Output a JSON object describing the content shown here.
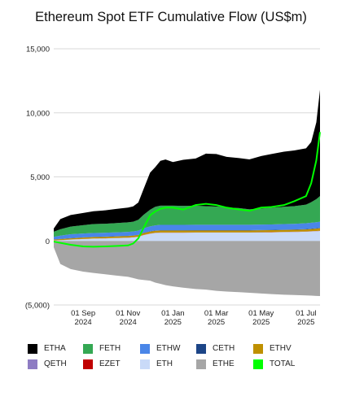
{
  "chart_data": {
    "type": "area",
    "title": "Ethereum Spot ETF Cumulative Flow (US$m)",
    "ylim": [
      -5000,
      15000
    ],
    "y_ticks": [
      15000,
      10000,
      5000,
      0,
      -5000
    ],
    "y_tick_labels": [
      "15,000",
      "10,000",
      "5,000",
      "0",
      "(5,000)"
    ],
    "x_ticks": [
      {
        "date": "2024-09-01",
        "line1": "01 Sep",
        "line2": "2024"
      },
      {
        "date": "2024-11-01",
        "line1": "01 Nov",
        "line2": "2024"
      },
      {
        "date": "2025-01-01",
        "line1": "01 Jan",
        "line2": "2025"
      },
      {
        "date": "2025-03-01",
        "line1": "01 Mar",
        "line2": "2025"
      },
      {
        "date": "2025-05-01",
        "line1": "01 May",
        "line2": "2025"
      },
      {
        "date": "2025-07-01",
        "line1": "01 Jul",
        "line2": "2025"
      }
    ],
    "x": [
      "2024-07-23",
      "2024-08-01",
      "2024-08-15",
      "2024-09-01",
      "2024-09-15",
      "2024-10-01",
      "2024-10-15",
      "2024-11-01",
      "2024-11-08",
      "2024-11-15",
      "2024-11-22",
      "2024-12-01",
      "2024-12-08",
      "2024-12-15",
      "2024-12-22",
      "2025-01-01",
      "2025-01-15",
      "2025-02-01",
      "2025-02-15",
      "2025-03-01",
      "2025-03-15",
      "2025-04-01",
      "2025-04-15",
      "2025-05-01",
      "2025-05-15",
      "2025-06-01",
      "2025-06-15",
      "2025-07-01",
      "2025-07-08",
      "2025-07-15",
      "2025-07-20"
    ],
    "series": [
      {
        "name": "ETHE",
        "color": "#a6a6a6",
        "values": [
          -500,
          -1800,
          -2200,
          -2400,
          -2500,
          -2600,
          -2700,
          -2800,
          -2900,
          -3000,
          -3050,
          -3100,
          -3250,
          -3350,
          -3450,
          -3550,
          -3650,
          -3750,
          -3800,
          -3900,
          -3950,
          -4000,
          -4050,
          -4100,
          -4150,
          -4200,
          -4220,
          -4250,
          -4270,
          -4290,
          -4300
        ]
      },
      {
        "name": "ETH",
        "color": "#c9daf8",
        "values": [
          30,
          50,
          100,
          150,
          180,
          200,
          220,
          250,
          280,
          320,
          450,
          560,
          620,
          640,
          640,
          640,
          640,
          650,
          650,
          650,
          650,
          650,
          650,
          660,
          670,
          690,
          700,
          720,
          740,
          760,
          780
        ]
      },
      {
        "name": "EZET",
        "color": "#c00000",
        "values": [
          5,
          5,
          5,
          5,
          5,
          5,
          5,
          5,
          5,
          5,
          10,
          10,
          10,
          10,
          10,
          10,
          10,
          10,
          10,
          10,
          10,
          10,
          10,
          10,
          10,
          10,
          10,
          10,
          10,
          10,
          10
        ]
      },
      {
        "name": "QETH",
        "color": "#8e7cc3",
        "values": [
          5,
          5,
          5,
          5,
          5,
          5,
          5,
          5,
          5,
          5,
          10,
          10,
          10,
          10,
          10,
          10,
          10,
          10,
          10,
          10,
          10,
          10,
          10,
          10,
          10,
          10,
          10,
          10,
          10,
          10,
          10
        ]
      },
      {
        "name": "ETHV",
        "color": "#bf9000",
        "values": [
          60,
          80,
          90,
          100,
          110,
          110,
          120,
          120,
          120,
          130,
          140,
          150,
          150,
          150,
          150,
          150,
          150,
          150,
          150,
          150,
          150,
          150,
          150,
          150,
          150,
          150,
          150,
          160,
          170,
          180,
          190
        ]
      },
      {
        "name": "CETH",
        "color": "#1c4587",
        "values": [
          20,
          20,
          20,
          20,
          20,
          20,
          20,
          20,
          20,
          20,
          25,
          25,
          25,
          25,
          25,
          25,
          25,
          25,
          25,
          25,
          25,
          25,
          25,
          25,
          25,
          25,
          25,
          30,
          30,
          30,
          30
        ]
      },
      {
        "name": "ETHW",
        "color": "#4a86e8",
        "values": [
          200,
          250,
          300,
          300,
          300,
          300,
          300,
          310,
          310,
          320,
          350,
          380,
          400,
          420,
          420,
          420,
          420,
          420,
          420,
          420,
          420,
          420,
          420,
          420,
          420,
          430,
          440,
          450,
          460,
          470,
          480
        ]
      },
      {
        "name": "FETH",
        "color": "#34a853",
        "values": [
          400,
          500,
          600,
          650,
          700,
          700,
          720,
          740,
          760,
          850,
          1050,
          1300,
          1450,
          1500,
          1500,
          1500,
          1480,
          1470,
          1450,
          1420,
          1350,
          1300,
          1200,
          1250,
          1300,
          1350,
          1380,
          1450,
          1600,
          1800,
          2000
        ]
      },
      {
        "name": "ETHA",
        "color": "#000000",
        "values": [
          250,
          800,
          900,
          950,
          1000,
          1050,
          1100,
          1150,
          1200,
          1350,
          2000,
          2900,
          3100,
          3500,
          3600,
          3400,
          3600,
          3700,
          4100,
          4100,
          3950,
          3900,
          3900,
          4100,
          4200,
          4300,
          4350,
          4400,
          4700,
          6000,
          8300
        ]
      }
    ],
    "total": {
      "name": "TOTAL",
      "color": "#00ff00",
      "values": [
        -50,
        -150,
        -300,
        -430,
        -450,
        -430,
        -400,
        -350,
        -200,
        200,
        1000,
        2000,
        2300,
        2500,
        2600,
        2600,
        2450,
        2800,
        2900,
        2800,
        2600,
        2450,
        2350,
        2600,
        2650,
        2800,
        3100,
        3500,
        4500,
        6300,
        8500
      ]
    },
    "legend": [
      [
        {
          "name": "ETHA",
          "color": "#000000"
        },
        {
          "name": "FETH",
          "color": "#34a853"
        },
        {
          "name": "ETHW",
          "color": "#4a86e8"
        },
        {
          "name": "CETH",
          "color": "#1c4587"
        },
        {
          "name": "ETHV",
          "color": "#bf9000"
        }
      ],
      [
        {
          "name": "QETH",
          "color": "#8e7cc3"
        },
        {
          "name": "EZET",
          "color": "#c00000"
        },
        {
          "name": "ETH",
          "color": "#c9daf8"
        },
        {
          "name": "ETHE",
          "color": "#a6a6a6"
        },
        {
          "name": "TOTAL",
          "color": "#00ff00"
        }
      ]
    ]
  }
}
